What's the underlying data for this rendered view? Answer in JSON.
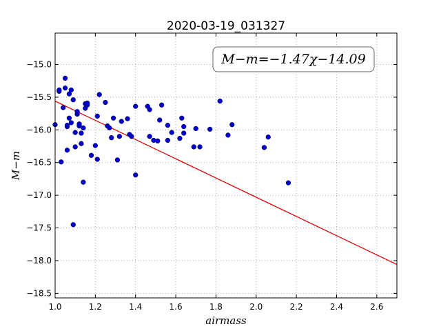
{
  "chart_data": {
    "type": "scatter",
    "title": "2020-03-19_031327",
    "xlabel": "airmass",
    "ylabel": "M−m",
    "xlim": [
      1.0,
      2.7
    ],
    "ylim": [
      -18.57,
      -14.52
    ],
    "xticks": [
      1.0,
      1.2,
      1.4,
      1.6,
      1.8,
      2.0,
      2.2,
      2.4,
      2.6
    ],
    "yticks": [
      -15.0,
      -15.5,
      -16.0,
      -16.5,
      -17.0,
      -17.5,
      -18.0,
      -18.5
    ],
    "xtick_labels": [
      "1.0",
      "1.2",
      "1.4",
      "1.6",
      "1.8",
      "2.0",
      "2.2",
      "2.4",
      "2.6"
    ],
    "ytick_labels": [
      "−15.0",
      "−15.5",
      "−16.0",
      "−16.5",
      "−17.0",
      "−17.5",
      "−18.0",
      "−18.5"
    ],
    "grid": true,
    "fit_label": "M−m=−1.47χ−14.09",
    "fit": {
      "slope": -1.47,
      "intercept": -14.09
    },
    "colors": {
      "points": "#0000cc",
      "fit_line": "#dd0000"
    },
    "x": [
      1.0,
      1.02,
      1.02,
      1.03,
      1.04,
      1.05,
      1.05,
      1.06,
      1.06,
      1.06,
      1.07,
      1.07,
      1.08,
      1.08,
      1.09,
      1.09,
      1.1,
      1.1,
      1.11,
      1.11,
      1.12,
      1.12,
      1.13,
      1.13,
      1.14,
      1.14,
      1.15,
      1.15,
      1.16,
      1.16,
      1.18,
      1.2,
      1.21,
      1.21,
      1.22,
      1.25,
      1.26,
      1.27,
      1.28,
      1.29,
      1.31,
      1.32,
      1.33,
      1.36,
      1.37,
      1.38,
      1.4,
      1.4,
      1.46,
      1.47,
      1.47,
      1.49,
      1.51,
      1.52,
      1.53,
      1.56,
      1.56,
      1.58,
      1.62,
      1.63,
      1.64,
      1.64,
      1.69,
      1.7,
      1.72,
      1.77,
      1.82,
      1.86,
      1.88,
      2.04,
      2.06,
      2.16
    ],
    "y": [
      -15.92,
      -15.41,
      -15.39,
      -16.49,
      -15.66,
      -15.21,
      -15.36,
      -15.95,
      -15.93,
      -16.31,
      -15.82,
      -15.45,
      -15.39,
      -15.89,
      -17.45,
      -15.54,
      -16.04,
      -16.26,
      -15.76,
      -15.72,
      -15.94,
      -15.91,
      -16.21,
      -16.05,
      -16.8,
      -15.97,
      -15.6,
      -15.67,
      -15.62,
      -15.59,
      -16.39,
      -16.24,
      -15.79,
      -16.45,
      -15.46,
      -15.58,
      -15.94,
      -15.97,
      -16.12,
      -15.82,
      -16.46,
      -16.1,
      -15.87,
      -15.83,
      -16.07,
      -16.1,
      -15.64,
      -16.69,
      -15.64,
      -15.69,
      -16.1,
      -16.16,
      -16.17,
      -15.85,
      -15.62,
      -15.93,
      -16.16,
      -16.04,
      -16.13,
      -15.82,
      -15.95,
      -16.05,
      -16.26,
      -15.98,
      -16.26,
      -15.99,
      -15.56,
      -16.08,
      -15.92,
      -16.27,
      -16.11,
      -16.81
    ]
  }
}
